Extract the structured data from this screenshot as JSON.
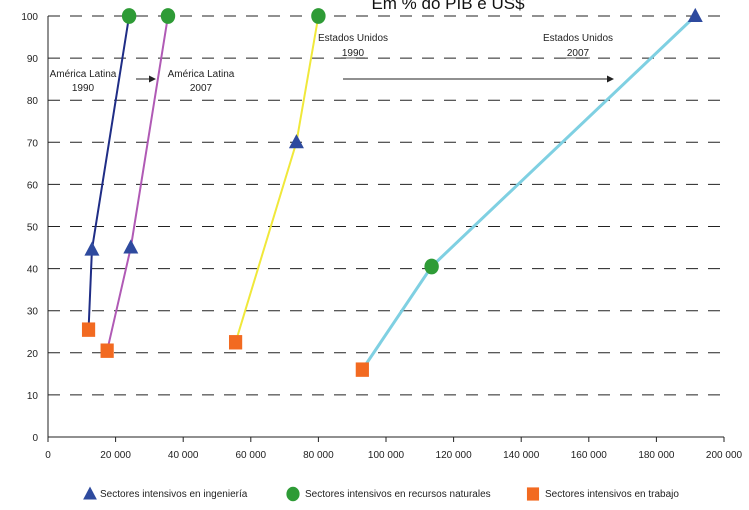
{
  "chart_data": {
    "type": "line",
    "title": "Em % do PIB e US$",
    "xlim": [
      0,
      200000
    ],
    "ylim": [
      0,
      100
    ],
    "xticks": [
      "0",
      "20 000",
      "40 000",
      "60 000",
      "80 000",
      "100 000",
      "120 000",
      "140 000",
      "160 000",
      "180 000",
      "200 000"
    ],
    "yticks": [
      "0",
      "10",
      "20",
      "30",
      "40",
      "50",
      "60",
      "70",
      "80",
      "90",
      "100"
    ],
    "grid": "horizontal-dashed",
    "legend_position": "bottom",
    "legend": [
      {
        "label": "Sectores intensivos en ingeniería",
        "marker": "triangle",
        "color": "#2E4A9E"
      },
      {
        "label": "Sectores intensivos en recursos naturales",
        "marker": "circle",
        "color": "#2E9B36"
      },
      {
        "label": "Sectores intensivos en trabajo",
        "marker": "square",
        "color": "#F26A21"
      }
    ],
    "series": [
      {
        "label_lines": [
          "América Latina",
          "1990"
        ],
        "color": "#1F2D86",
        "points": [
          {
            "x": 12000,
            "y": 25.5,
            "marker": "square"
          },
          {
            "x": 13000,
            "y": 44.5,
            "marker": "triangle"
          },
          {
            "x": 24000,
            "y": 100,
            "marker": "circle"
          }
        ]
      },
      {
        "label_lines": [
          "América Latina",
          "2007"
        ],
        "color": "#B05AB5",
        "points": [
          {
            "x": 17500,
            "y": 20.5,
            "marker": "square"
          },
          {
            "x": 24500,
            "y": 45,
            "marker": "triangle"
          },
          {
            "x": 35500,
            "y": 100,
            "marker": "circle"
          }
        ]
      },
      {
        "label_lines": [
          "Estados Unidos",
          "1990"
        ],
        "color": "#F0E83A",
        "points": [
          {
            "x": 55500,
            "y": 22.5,
            "marker": "square"
          },
          {
            "x": 73500,
            "y": 70,
            "marker": "triangle"
          },
          {
            "x": 80000,
            "y": 100,
            "marker": "circle"
          }
        ]
      },
      {
        "label_lines": [
          "Estados Unidos",
          "2007"
        ],
        "color": "#7FD0E2",
        "points": [
          {
            "x": 93000,
            "y": 16,
            "marker": "square"
          },
          {
            "x": 113500,
            "y": 40.5,
            "marker": "circle"
          },
          {
            "x": 191500,
            "y": 100,
            "marker": "triangle"
          }
        ]
      }
    ],
    "annotations": [
      "→",
      "→"
    ]
  }
}
